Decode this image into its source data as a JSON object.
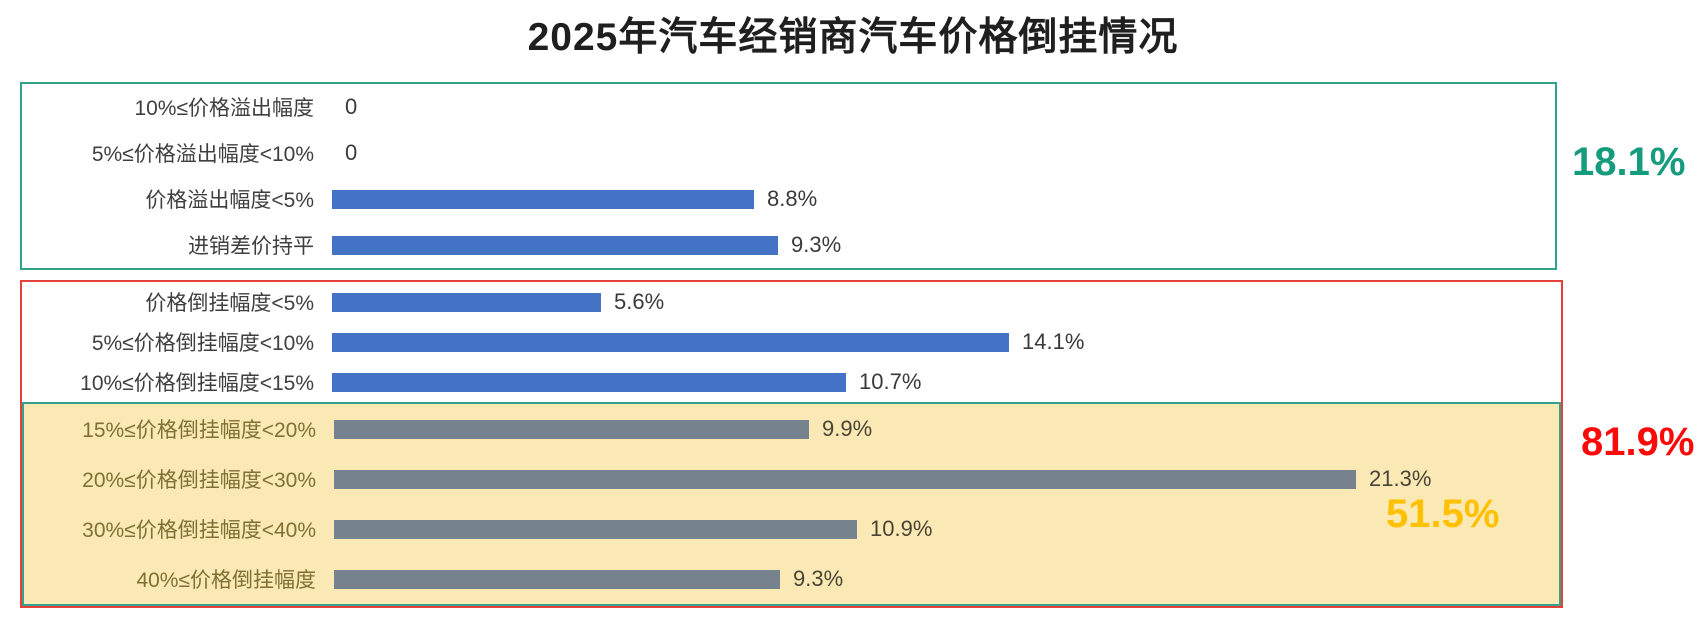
{
  "title": "2025年汽车经销商汽车价格倒挂情况",
  "chart_data": {
    "type": "bar",
    "orientation": "horizontal",
    "title": "2025年汽车经销商汽车价格倒挂情况",
    "unit": "percent",
    "xlim": [
      0,
      22
    ],
    "grid": false,
    "legend": false,
    "rows": [
      {
        "label": "10%≤价格溢出幅度",
        "value": 0,
        "display": "0",
        "bar": "blue"
      },
      {
        "label": "5%≤价格溢出幅度<10%",
        "value": 0,
        "display": "0",
        "bar": "blue"
      },
      {
        "label": "价格溢出幅度<5%",
        "value": 8.8,
        "display": "8.8%",
        "bar": "blue"
      },
      {
        "label": "进销差价持平",
        "value": 9.3,
        "display": "9.3%",
        "bar": "blue"
      },
      {
        "label": "价格倒挂幅度<5%",
        "value": 5.6,
        "display": "5.6%",
        "bar": "blue"
      },
      {
        "label": "5%≤价格倒挂幅度<10%",
        "value": 14.1,
        "display": "14.1%",
        "bar": "blue"
      },
      {
        "label": "10%≤价格倒挂幅度<15%",
        "value": 10.7,
        "display": "10.7%",
        "bar": "blue"
      },
      {
        "label": "15%≤价格倒挂幅度<20%",
        "value": 9.9,
        "display": "9.9%",
        "bar": "gray"
      },
      {
        "label": "20%≤价格倒挂幅度<30%",
        "value": 21.3,
        "display": "21.3%",
        "bar": "gray"
      },
      {
        "label": "30%≤价格倒挂幅度<40%",
        "value": 10.9,
        "display": "10.9%",
        "bar": "gray"
      },
      {
        "label": "40%≤价格倒挂幅度",
        "value": 9.3,
        "display": "9.3%",
        "bar": "gray"
      }
    ],
    "groups": [
      {
        "id": "price-overflow-or-flat",
        "rows": [
          0,
          3
        ],
        "annotation": "18.1%",
        "border_color": "#32A28C",
        "annotation_color": "#169C7D",
        "fill": "#FFFFFF"
      },
      {
        "id": "price-inversion-total",
        "rows": [
          4,
          10
        ],
        "annotation": "81.9%",
        "border_color": "#E6403B",
        "annotation_color": "#FB0A0A",
        "fill": "#FFFFFF"
      },
      {
        "id": "price-inversion-over-15",
        "rows": [
          7,
          10
        ],
        "annotation": "51.5%",
        "border_color": "#32A28C",
        "annotation_color": "#FFC000",
        "fill": "#FAE9B4"
      }
    ],
    "colors": {
      "blue_bar": "#4472C4",
      "gray_bar": "#76838E",
      "label_text": "#3F3F3F",
      "yellow_zone_label_text": "#7D7134",
      "title_text": "#1F1F1F"
    }
  }
}
